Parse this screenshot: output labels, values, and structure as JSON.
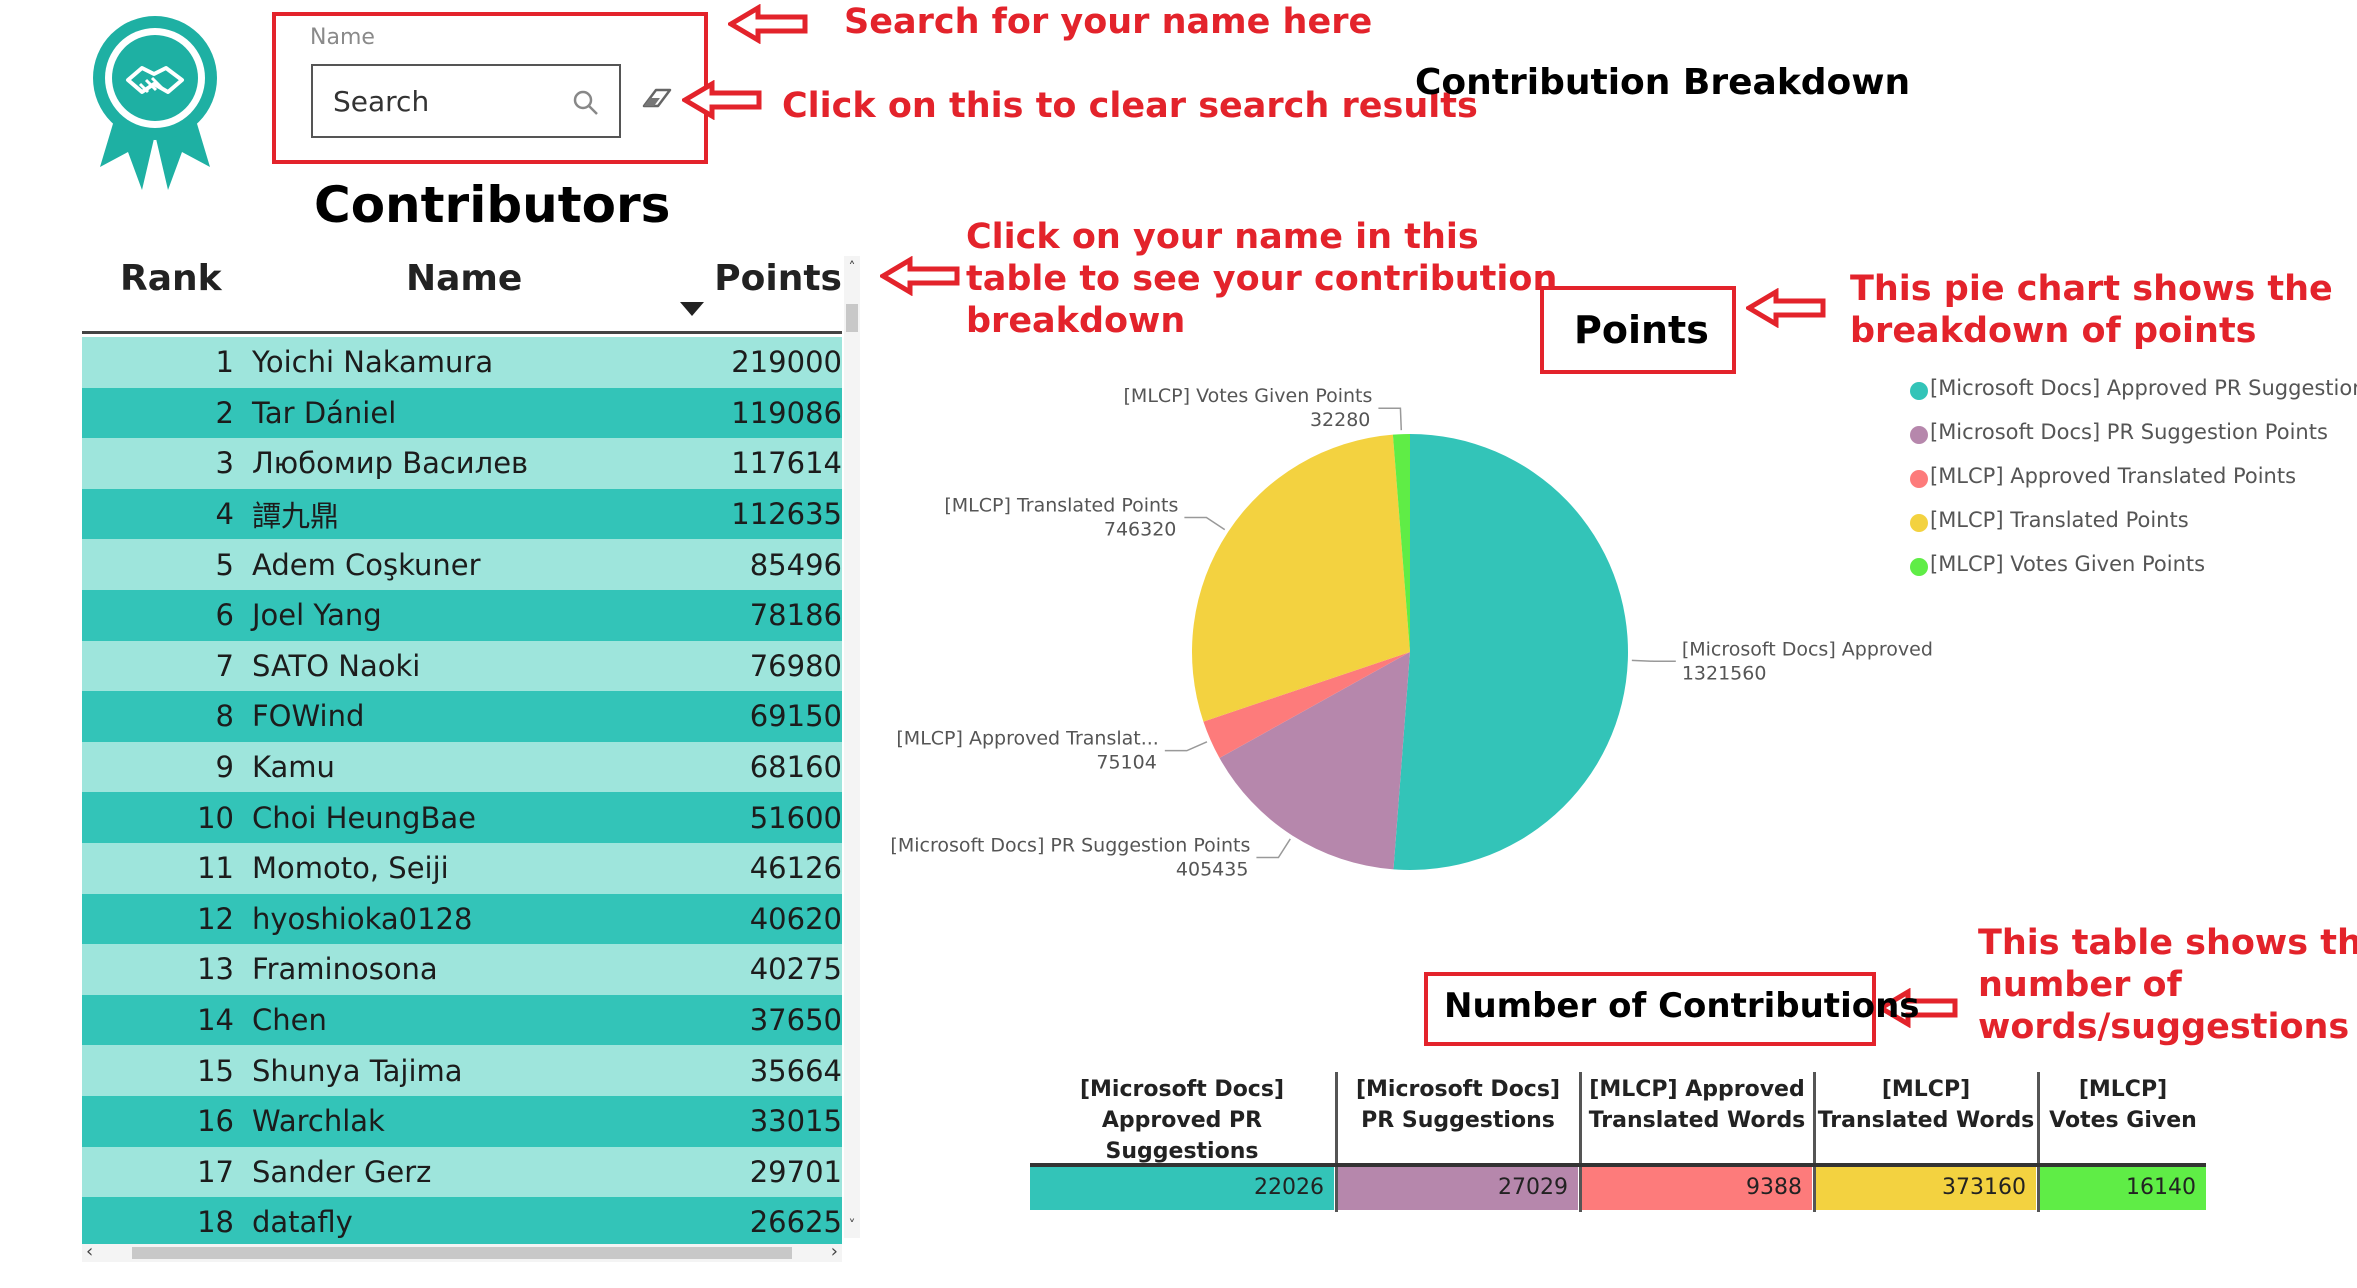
{
  "search": {
    "label": "Name",
    "placeholder": "Search"
  },
  "annotations": {
    "search_hint": "Search for your name here",
    "clear_hint": "Click on this to clear search results",
    "table_hint_lines": [
      "Click on your name in this",
      "table to see your contribution",
      "breakdown"
    ],
    "pie_hint_lines": [
      "This pie chart shows the",
      "breakdown of points"
    ],
    "count_hint_lines": [
      "This table shows the",
      "number of",
      "words/suggestions"
    ]
  },
  "titles": {
    "contributors": "Contributors",
    "breakdown": "Contribution Breakdown",
    "points": "Points",
    "contributions": "Number of Contributions"
  },
  "table": {
    "headers": {
      "rank": "Rank",
      "name": "Name",
      "points": "Points"
    },
    "rows": [
      {
        "rank": "1",
        "name": "Yoichi Nakamura",
        "points": "219000"
      },
      {
        "rank": "2",
        "name": "Tar Dániel",
        "points": "119086"
      },
      {
        "rank": "3",
        "name": "Любомир Василев",
        "points": "117614"
      },
      {
        "rank": "4",
        "name": "譚九鼎",
        "points": "112635"
      },
      {
        "rank": "5",
        "name": "Adem Coşkuner",
        "points": "85496"
      },
      {
        "rank": "6",
        "name": "Joel Yang",
        "points": "78186"
      },
      {
        "rank": "7",
        "name": "SATO Naoki",
        "points": "76980"
      },
      {
        "rank": "8",
        "name": "FOWind",
        "points": "69150"
      },
      {
        "rank": "9",
        "name": "Kamu",
        "points": "68160"
      },
      {
        "rank": "10",
        "name": "Choi HeungBae",
        "points": "51600"
      },
      {
        "rank": "11",
        "name": "Momoto, Seiji",
        "points": "46126"
      },
      {
        "rank": "12",
        "name": "hyoshioka0128",
        "points": "40620"
      },
      {
        "rank": "13",
        "name": "Framinosona",
        "points": "40275"
      },
      {
        "rank": "14",
        "name": "Chen",
        "points": "37650"
      },
      {
        "rank": "15",
        "name": "Shunya Tajima",
        "points": "35664"
      },
      {
        "rank": "16",
        "name": "Warchlak",
        "points": "33015"
      },
      {
        "rank": "17",
        "name": "Sander Gerz",
        "points": "29701"
      },
      {
        "rank": "18",
        "name": "datafly",
        "points": "26625"
      }
    ],
    "row_colors": [
      "#9ee5dc",
      "#33c4b8"
    ]
  },
  "chart_data": {
    "type": "pie",
    "slices": [
      {
        "label": "[Microsoft Docs] Approved PR Su...",
        "legend": "[Microsoft Docs] Approved PR Suggestion...",
        "value": 1321560,
        "value_label": "1321560",
        "color": "#33c4b8"
      },
      {
        "label": "[Microsoft Docs] PR Suggestion Points",
        "legend": "[Microsoft Docs] PR Suggestion Points",
        "value": 405435,
        "value_label": "405435",
        "color": "#b687ac"
      },
      {
        "label": "[MLCP] Approved Translat...",
        "legend": "[MLCP] Approved Translated Points",
        "value": 75104,
        "value_label": "75104",
        "color": "#fd7b7b"
      },
      {
        "label": "[MLCP] Translated Points",
        "legend": "[MLCP] Translated Points",
        "value": 746320,
        "value_label": "746320",
        "color": "#f3d240"
      },
      {
        "label": "[MLCP] Votes Given Points",
        "legend": "[MLCP] Votes Given Points",
        "value": 32280,
        "value_label": "32280",
        "color": "#5fed46"
      }
    ],
    "legend_position": "right"
  },
  "contributions": {
    "columns": [
      {
        "header": [
          "[Microsoft Docs]",
          "Approved PR Suggestions"
        ],
        "value": "22026",
        "color": "#33c4b8"
      },
      {
        "header": [
          "[Microsoft Docs]",
          "PR Suggestions"
        ],
        "value": "27029",
        "color": "#b687ac"
      },
      {
        "header": [
          "[MLCP] Approved",
          "Translated Words"
        ],
        "value": "9388",
        "color": "#fd7b7b"
      },
      {
        "header": [
          "[MLCP]",
          "Translated Words"
        ],
        "value": "373160",
        "color": "#f3d240"
      },
      {
        "header": [
          "[MLCP]",
          "Votes Given"
        ],
        "value": "16140",
        "color": "#5fed46"
      }
    ]
  },
  "colors": {
    "accent_red": "#e3232b",
    "teal": "#1eb0a3"
  },
  "icons": [
    "award-ribbon-handshake-icon",
    "search-icon",
    "eraser-icon",
    "red-arrow-icon",
    "sort-down-icon"
  ]
}
